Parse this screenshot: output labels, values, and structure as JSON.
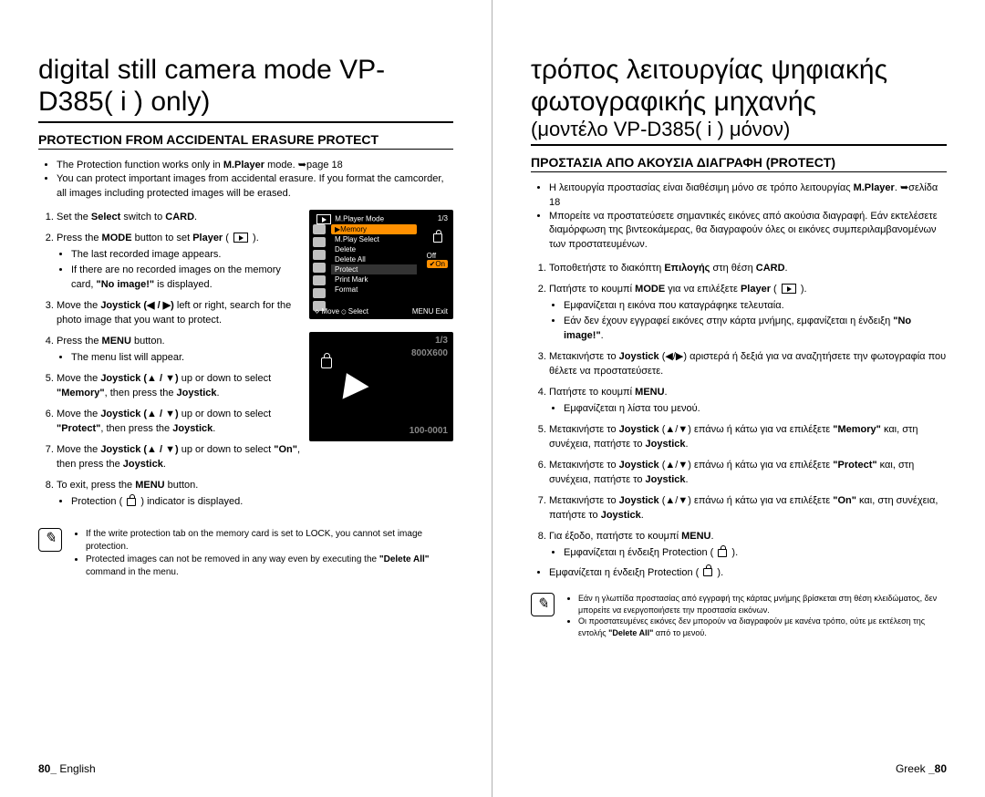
{
  "left": {
    "title": "digital still camera mode VP-D385( i ) only)",
    "section": "PROTECTION FROM ACCIDENTAL ERASURE PROTECT",
    "intro": [
      "The Protection function works only in <b>M.Player</b> mode. ➥page 18",
      "You can protect important images from accidental erasure. If you format the camcorder, all images including protected images will be erased."
    ],
    "steps": [
      {
        "t": "Set the <b>Select</b> switch to <b>CARD</b>."
      },
      {
        "t": "Press the <b>MODE</b> button to set <b>Player</b> ( <span class='play-icon-box'></span> ).",
        "sub": [
          "The last recorded image appears.",
          "If there are no recorded images on the memory card, <b>\"No image!\"</b> is displayed."
        ]
      },
      {
        "t": "Move the <b>Joystick (◀ / ▶)</b> left or right, search for the photo image that you want to protect."
      },
      {
        "t": "Press the <b>MENU</b> button.",
        "sub": [
          "The menu list will appear."
        ]
      },
      {
        "t": "Move the <b>Joystick (▲ / ▼)</b> up or down to select <b>\"Memory\"</b>, then press the <b>Joystick</b>."
      },
      {
        "t": "Move the <b>Joystick (▲ / ▼)</b> up or down to select <b>\"Protect\"</b>, then press the <b>Joystick</b>."
      },
      {
        "t": "Move the <b>Joystick (▲ / ▼)</b> up or down to select <b>\"On\"</b>, then press the <b>Joystick</b>."
      },
      {
        "t": "To exit, press the <b>MENU</b> button.",
        "sub": [
          "Protection ( <span class='lock-inline'></span> ) indicator is displayed."
        ]
      }
    ],
    "notes": [
      "If the write protection tab on the memory card is set to LOCK, you cannot set image protection.",
      "Protected images can not be removed in any way even by executing the <b>\"Delete All\"</b> command in the menu."
    ],
    "footer_num": "80_",
    "footer_lang": "English"
  },
  "right": {
    "title1": "τρόπος λειτουργίας ψηφιακής φωτογραφικής μηχανής",
    "title2": "(μοντέλο VP-D385( i ) μόνον)",
    "section": "ΠΡΟΣΤΑΣΙΑ ΑΠΟ ΑΚΟΥΣΙΑ ΔΙΑΓΡΑΦΗ (PROTECT)",
    "intro": [
      "Η λειτουργία προστασίας είναι διαθέσιμη μόνο σε τρόπο λειτουργίας <b>M.Player</b>. ➥σελίδα 18",
      "Μπορείτε να προστατεύσετε σημαντικές εικόνες από ακούσια διαγραφή. Εάν εκτελέσετε διαμόρφωση της βιντεοκάμερας, θα διαγραφούν όλες οι εικόνες συμπεριλαμβανομένων των προστατευμένων."
    ],
    "steps": [
      {
        "t": "Τοποθετήστε το διακόπτη <b>Επιλογής</b> στη θέση <b>CARD</b>."
      },
      {
        "t": "Πατήστε το κουμπί <b>MODE</b> για να επιλέξετε <b>Player</b> ( <span class='play-icon-box'></span> ).",
        "sub": [
          "Εμφανίζεται η εικόνα που καταγράφηκε τελευταία.",
          "Εάν δεν έχουν εγγραφεί εικόνες στην κάρτα μνήμης, εμφανίζεται η ένδειξη <b>\"No image!\"</b>."
        ]
      },
      {
        "t": "Μετακινήστε το <b>Joystick</b> (◀/▶) αριστερά ή δεξιά για να αναζητήσετε την φωτογραφία που θέλετε να προστατεύσετε."
      },
      {
        "t": "Πατήστε το κουμπί <b>MENU</b>.",
        "sub": [
          "Εμφανίζεται η λίστα του μενού."
        ]
      },
      {
        "t": "Μετακινήστε το <b>Joystick</b> (▲/▼) επάνω ή κάτω για να επιλέξετε <b>\"Memory\"</b> και, στη συνέχεια, πατήστε το <b>Joystick</b>."
      },
      {
        "t": "Μετακινήστε το <b>Joystick</b> (▲/▼) επάνω ή κάτω για να επιλέξετε <b>\"Protect\"</b> και, στη συνέχεια, πατήστε το <b>Joystick</b>."
      },
      {
        "t": "Μετακινήστε το <b>Joystick</b> (▲/▼) επάνω ή κάτω για να επιλέξετε <b>\"On\"</b> και, στη συνέχεια, πατήστε το <b>Joystick</b>."
      },
      {
        "t": "Για έξοδο, πατήστε το κουμπί <b>MENU</b>.",
        "sub": [
          "Εμφανίζεται η ένδειξη Protection ( <span class='lock-inline'></span> )."
        ]
      }
    ],
    "notes": [
      "Εάν η γλωττίδα προστασίας από εγγραφή της κάρτας μνήμης βρίσκεται στη θέση κλειδώματος, δεν μπορείτε να ενεργοποιήσετε την προστασία εικόνων.",
      "Οι προστατευμένες εικόνες δεν μπορούν να διαγραφούν με κανένα τρόπο, ούτε με εκτέλεση της εντολής <b>\"Delete All\"</b> από το μενού."
    ],
    "footer_lang": "Greek ",
    "footer_num": "_80"
  },
  "lcd1": {
    "mode": "M.Player Mode",
    "count": "1/3",
    "menu": [
      "▶Memory",
      "M.Play Select",
      "Delete",
      "Delete All",
      "Protect",
      "Print Mark",
      "Format"
    ],
    "opts": [
      "Off",
      "✔On"
    ],
    "move": "⟡ Move ⊙ Select",
    "exit": "MENU Exit"
  },
  "lcd2": {
    "count": "1/3",
    "res": "800X600",
    "id": "100-0001"
  },
  "colors": {
    "highlight": "#ff9000",
    "lcd_bg": "#000000",
    "text": "#000000"
  }
}
